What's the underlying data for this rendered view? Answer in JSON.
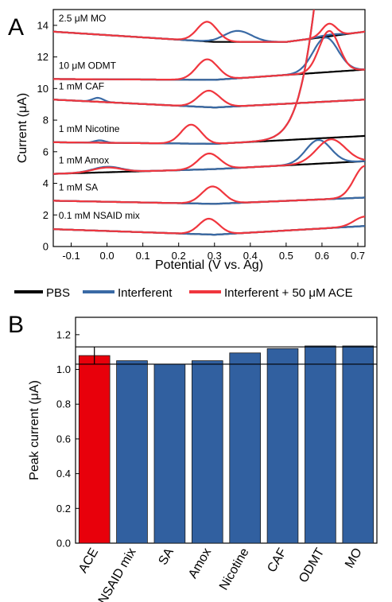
{
  "chart_data": [
    {
      "panel": "A",
      "type": "line",
      "xlabel": "Potential (V vs. Ag)",
      "ylabel": "Current (μA)",
      "xlim": [
        -0.15,
        0.72
      ],
      "ylim": [
        0,
        15
      ],
      "xticks": [
        "-0.1",
        "0.0",
        "0.1",
        "0.2",
        "0.3",
        "0.4",
        "0.5",
        "0.6",
        "0.7"
      ],
      "yticks": [
        "0",
        "2",
        "4",
        "6",
        "8",
        "10",
        "12",
        "14"
      ],
      "series_colors": {
        "PBS": "#000000",
        "Interferent": "#3a6aa5",
        "Interferent + 50 μM ACE": "#f0363e"
      },
      "traces": [
        {
          "label": "2.5 μM MO",
          "baseline": [
            [
              -0.15,
              13.6
            ],
            [
              0.3,
              12.95
            ],
            [
              0.5,
              12.95
            ],
            [
              0.72,
              13.6
            ]
          ],
          "interferent_peaks": [
            [
              0.365,
              0.7,
              0.038
            ],
            [
              0.62,
              0.1,
              0.03
            ]
          ],
          "ace_peaks": [
            [
              0.28,
              1.25,
              0.028
            ],
            [
              0.62,
              0.8,
              0.02
            ]
          ]
        },
        {
          "label": "10 μM ODMT",
          "baseline": [
            [
              -0.15,
              10.6
            ],
            [
              0.3,
              10.55
            ],
            [
              0.72,
              11.2
            ]
          ],
          "interferent_peaks": [
            [
              0.61,
              2.2,
              0.035
            ]
          ],
          "ace_peaks": [
            [
              0.28,
              1.3,
              0.03
            ],
            [
              0.62,
              2.6,
              0.028
            ]
          ]
        },
        {
          "label": "1 mM CAF",
          "baseline": [
            [
              -0.15,
              9.3
            ],
            [
              0.3,
              8.8
            ],
            [
              0.72,
              9.3
            ]
          ],
          "interferent_peaks": [
            [
              -0.025,
              0.25,
              0.015
            ]
          ],
          "ace_peaks": [
            [
              0.285,
              1.05,
              0.03
            ]
          ]
        },
        {
          "label": "1 mM Nicotine",
          "baseline": [
            [
              -0.15,
              6.6
            ],
            [
              0.3,
              6.5
            ],
            [
              0.72,
              7.0
            ]
          ],
          "interferent_peaks": [
            [
              -0.02,
              0.15,
              0.015
            ],
            [
              0.72,
              40.0,
              0.08
            ]
          ],
          "ace_peaks": [
            [
              0.235,
              1.2,
              0.028
            ],
            [
              0.72,
              40.0,
              0.08
            ]
          ]
        },
        {
          "label": "1 mM Amox",
          "baseline": [
            [
              -0.15,
              4.6
            ],
            [
              0.3,
              4.9
            ],
            [
              0.72,
              5.4
            ]
          ],
          "interferent_peaks": [
            [
              0.0,
              0.35,
              0.04
            ],
            [
              0.59,
              1.5,
              0.035
            ]
          ],
          "ace_peaks": [
            [
              0.0,
              0.3,
              0.04
            ],
            [
              0.285,
              1.0,
              0.03
            ],
            [
              0.625,
              1.5,
              0.04
            ]
          ]
        },
        {
          "label": "1 mM SA",
          "baseline": [
            [
              -0.15,
              2.9
            ],
            [
              0.3,
              2.7
            ],
            [
              0.72,
              3.1
            ]
          ],
          "interferent_peaks": [],
          "ace_peaks": [
            [
              0.295,
              1.1,
              0.03
            ],
            [
              0.72,
              2.0,
              0.03
            ]
          ]
        },
        {
          "label": "0.1 mM NSAID mix",
          "baseline": [
            [
              -0.15,
              1.1
            ],
            [
              0.3,
              0.75
            ],
            [
              0.72,
              1.3
            ]
          ],
          "interferent_peaks": [],
          "ace_peaks": [
            [
              0.285,
              1.0,
              0.028
            ],
            [
              0.72,
              0.6,
              0.03
            ]
          ]
        }
      ]
    },
    {
      "panel": "B",
      "type": "bar",
      "ylabel": "Peak current (μA)",
      "ylim": [
        0,
        1.3
      ],
      "yticks": [
        "0.0",
        "0.2",
        "0.4",
        "0.6",
        "0.8",
        "1.0",
        "1.2"
      ],
      "categories": [
        "ACE",
        "NSAID mix",
        "SA",
        "Amox",
        "Nicotine",
        "CAF",
        "ODMT",
        "MO"
      ],
      "values": [
        1.08,
        1.05,
        1.03,
        1.05,
        1.095,
        1.12,
        1.135,
        1.135
      ],
      "errors": [
        0.05,
        0,
        0,
        0,
        0,
        0,
        0,
        0
      ],
      "colors": [
        "#e8000b",
        "#3160a0",
        "#3160a0",
        "#3160a0",
        "#3160a0",
        "#3160a0",
        "#3160a0",
        "#3160a0"
      ],
      "reference_lines": [
        1.03,
        1.13
      ]
    }
  ],
  "panels": {
    "a": "A",
    "b": "B"
  },
  "legend": {
    "items": [
      {
        "label": "PBS",
        "color": "#000000"
      },
      {
        "label": "Interferent",
        "color": "#3a6aa5"
      },
      {
        "label": "Interferent + 50 μM ACE",
        "color": "#f0363e"
      }
    ]
  }
}
